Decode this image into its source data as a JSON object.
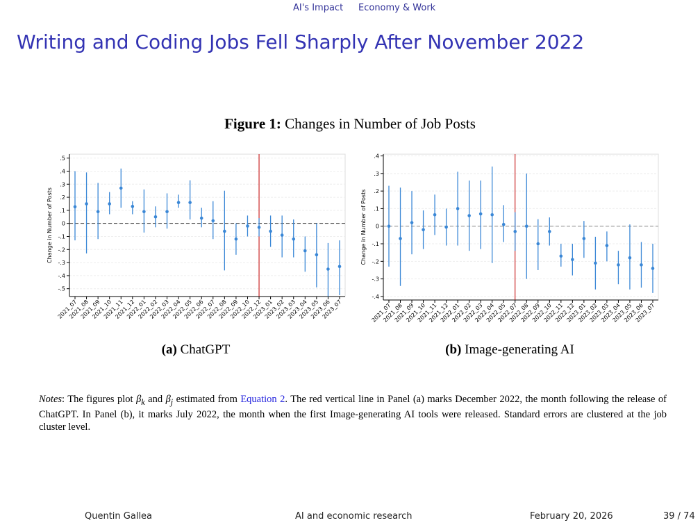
{
  "nav": [
    "AI's Impact",
    "Economy & Work"
  ],
  "title": "Writing and Coding Jobs Fell Sharply After November 2022",
  "figure": {
    "label": "Figure 1:",
    "caption": "Changes in Number of Job Posts"
  },
  "chart_data": [
    {
      "type": "errorbar",
      "label": "(a)",
      "caption": "ChatGPT",
      "ylabel": "Change in Number of Posts",
      "categories": [
        "2021_07",
        "2021_08",
        "2021_09",
        "2021_10",
        "2021_11",
        "2021_12",
        "2022_01",
        "2022_02",
        "2022_03",
        "2022_04",
        "2022_05",
        "2022_06",
        "2022_07",
        "2022_08",
        "2022_09",
        "2022_10",
        "2022_12",
        "2023_01",
        "2023_02",
        "2023_03",
        "2023_04",
        "2023_05",
        "2023_06",
        "2023_07"
      ],
      "values": [
        0.127,
        0.15,
        0.09,
        0.15,
        0.27,
        0.13,
        0.09,
        0.05,
        0.09,
        0.16,
        0.16,
        0.04,
        0.02,
        -0.06,
        -0.12,
        -0.02,
        -0.03,
        -0.06,
        -0.09,
        -0.12,
        -0.21,
        -0.24,
        -0.35,
        -0.33
      ],
      "upper": [
        0.4,
        0.39,
        0.31,
        0.24,
        0.42,
        0.17,
        0.26,
        0.13,
        0.23,
        0.22,
        0.33,
        0.12,
        0.17,
        0.25,
        0.0,
        0.06,
        0.04,
        0.06,
        0.06,
        0.03,
        -0.1,
        0.0,
        -0.15,
        -0.13
      ],
      "lower": [
        -0.13,
        -0.23,
        -0.12,
        0.07,
        0.12,
        0.07,
        -0.07,
        -0.03,
        -0.04,
        0.12,
        0.03,
        -0.03,
        -0.12,
        -0.36,
        -0.24,
        -0.1,
        -0.1,
        -0.18,
        -0.26,
        -0.26,
        -0.37,
        -0.49,
        -0.56,
        -0.55
      ],
      "color": "#3a87d6",
      "ylim": [
        -0.56,
        0.53
      ],
      "yticks": [
        {
          "value": 0.5,
          "label": ".5"
        },
        {
          "value": 0.4,
          "label": ".4"
        },
        {
          "value": 0.3,
          "label": ".3"
        },
        {
          "value": 0.2,
          "label": ".2"
        },
        {
          "value": 0.1,
          "label": ".1"
        },
        0,
        {
          "value": -0.1,
          "label": "-.1"
        },
        {
          "value": -0.2,
          "label": "-.2"
        },
        {
          "value": -0.3,
          "label": "-.3"
        },
        {
          "value": -0.4,
          "label": "-.4"
        },
        {
          "value": -0.5,
          "label": "-.5"
        }
      ],
      "grid": true,
      "zero_line_color": "#333333",
      "vline": {
        "x": "2022_12",
        "color": "#c00000"
      }
    },
    {
      "type": "errorbar",
      "label": "(b)",
      "caption": "Image-generating AI",
      "ylabel": "Change in Number of Posts",
      "categories": [
        "2021_07",
        "2021_08",
        "2021_09",
        "2021_10",
        "2021_11",
        "2021_12",
        "2022_01",
        "2022_02",
        "2022_03",
        "2022_04",
        "2022_05",
        "2022_07",
        "2022_08",
        "2022_09",
        "2022_10",
        "2022_11",
        "2022_12",
        "2023_01",
        "2023_02",
        "2023_03",
        "2023_04",
        "2023_05",
        "2023_06",
        "2023_07"
      ],
      "values": [
        0.0,
        -0.07,
        0.02,
        -0.02,
        0.065,
        -0.005,
        0.1,
        0.06,
        0.07,
        0.065,
        0.01,
        -0.03,
        0.0,
        -0.1,
        -0.03,
        -0.17,
        -0.19,
        -0.07,
        -0.21,
        -0.11,
        -0.22,
        -0.18,
        -0.22,
        -0.24
      ],
      "upper": [
        0.23,
        0.22,
        0.2,
        0.09,
        0.18,
        0.1,
        0.31,
        0.26,
        0.26,
        0.34,
        0.12,
        0.08,
        0.3,
        0.04,
        0.05,
        -0.1,
        -0.1,
        0.03,
        -0.06,
        -0.03,
        -0.14,
        0.01,
        -0.09,
        -0.1
      ],
      "lower": [
        -0.23,
        -0.34,
        -0.16,
        -0.13,
        -0.05,
        -0.11,
        -0.11,
        -0.14,
        -0.13,
        -0.21,
        -0.09,
        -0.14,
        -0.3,
        -0.25,
        -0.11,
        -0.23,
        -0.28,
        -0.18,
        -0.36,
        -0.2,
        -0.33,
        -0.36,
        -0.35,
        -0.38
      ],
      "color": "#3a87d6",
      "ylim": [
        -0.42,
        0.41
      ],
      "yticks": [
        {
          "value": 0.4,
          "label": ".4"
        },
        {
          "value": 0.3,
          "label": ".3"
        },
        {
          "value": 0.2,
          "label": ".2"
        },
        {
          "value": 0.1,
          "label": ".1"
        },
        0,
        {
          "value": -0.1,
          "label": "-.1"
        },
        {
          "value": -0.2,
          "label": "-.2"
        },
        {
          "value": -0.3,
          "label": "-.3"
        },
        {
          "value": -0.4,
          "label": "-.4"
        }
      ],
      "grid": true,
      "zero_line_color": "#888888",
      "vline": {
        "x": "2022_07",
        "color": "#c00000"
      }
    }
  ],
  "notes": [
    "Notes",
    ": The figures plot ",
    "β",
    "k",
    " and ",
    "β",
    "j",
    " estimated from ",
    "Equation 2",
    ". The red vertical line in Panel (a) marks December 2022, the month following the release of ChatGPT. In Panel (b), it marks July 2022, the month when the first Image-generating AI tools were released. Standard errors are clustered at the job cluster level."
  ],
  "footer": {
    "author": "Quentin Gallea",
    "talk": "AI and economic research",
    "date": "February 20, 2026",
    "page": "39 / 74"
  }
}
